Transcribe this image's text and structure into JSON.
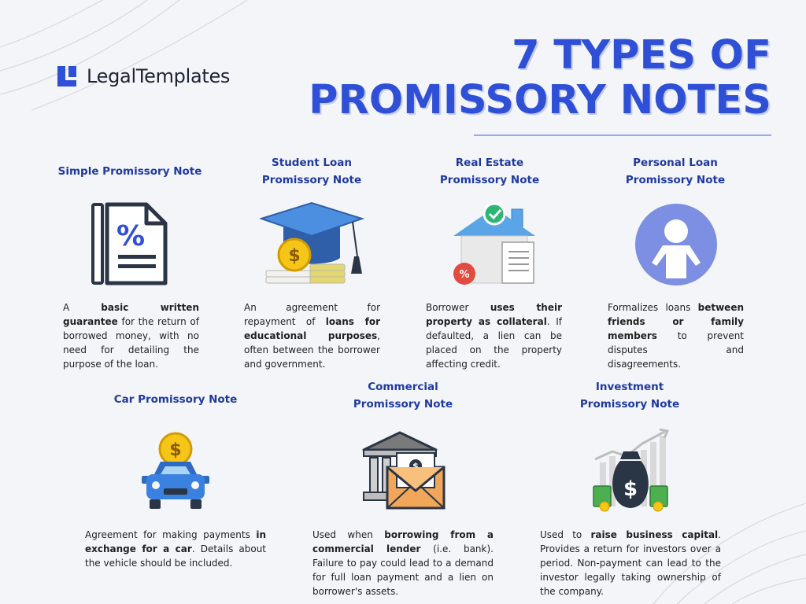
{
  "brand": {
    "name": "LegalTemplates"
  },
  "title": {
    "line1": "7 TYPES OF",
    "line2": "PROMISSORY NOTES"
  },
  "colors": {
    "accent": "#2f4fd6",
    "heading": "#1f3a9f",
    "background": "#f4f5f9"
  },
  "cards": [
    {
      "title_lines": [
        "Simple Promissory Note"
      ],
      "icon": "document-percent-icon",
      "desc": [
        {
          "t": "A ",
          "b": false
        },
        {
          "t": "basic written guarantee",
          "b": true
        },
        {
          "t": " for the return of borrowed money, with no need for detailing the purpose of the loan.",
          "b": false
        }
      ]
    },
    {
      "title_lines": [
        "Student Loan",
        "Promissory Note"
      ],
      "icon": "graduation-cap-icon",
      "desc": [
        {
          "t": "An agreement for repayment of ",
          "b": false
        },
        {
          "t": "loans for educational purposes",
          "b": true
        },
        {
          "t": ", often between the borrower and government.",
          "b": false
        }
      ]
    },
    {
      "title_lines": [
        "Real Estate",
        "Promissory Note"
      ],
      "icon": "house-document-icon",
      "desc": [
        {
          "t": "Borrower ",
          "b": false
        },
        {
          "t": "uses their property as collateral",
          "b": true
        },
        {
          "t": ". If defaulted, a lien can be placed on the property affecting credit.",
          "b": false
        }
      ]
    },
    {
      "title_lines": [
        "Personal Loan",
        "Promissory Note"
      ],
      "icon": "person-icon",
      "desc": [
        {
          "t": "Formalizes loans ",
          "b": false
        },
        {
          "t": "between friends or family members",
          "b": true
        },
        {
          "t": " to prevent disputes and disagreements.",
          "b": false
        }
      ]
    },
    {
      "title_lines": [
        "Car Promissory Note"
      ],
      "icon": "car-coin-icon",
      "desc": [
        {
          "t": "Agreement for making payments ",
          "b": false
        },
        {
          "t": "in exchange for a car",
          "b": true
        },
        {
          "t": ". Details about the vehicle should be included.",
          "b": false
        }
      ]
    },
    {
      "title_lines": [
        "Commercial",
        "Promissory Note"
      ],
      "icon": "bank-envelope-icon",
      "desc": [
        {
          "t": "Used when ",
          "b": false
        },
        {
          "t": "borrowing from a commercial lender",
          "b": true
        },
        {
          "t": " (i.e. bank). Failure to pay could lead to a demand for full loan payment and a lien on borrower's assets.",
          "b": false
        }
      ]
    },
    {
      "title_lines": [
        "Investment",
        "Promissory Note"
      ],
      "icon": "money-bag-growth-icon",
      "desc": [
        {
          "t": "Used to ",
          "b": false
        },
        {
          "t": "raise business capital",
          "b": true
        },
        {
          "t": ". Provides a return for investors over a period. Non-payment can lead to the investor legally taking ownership of the company.",
          "b": false
        }
      ]
    }
  ]
}
